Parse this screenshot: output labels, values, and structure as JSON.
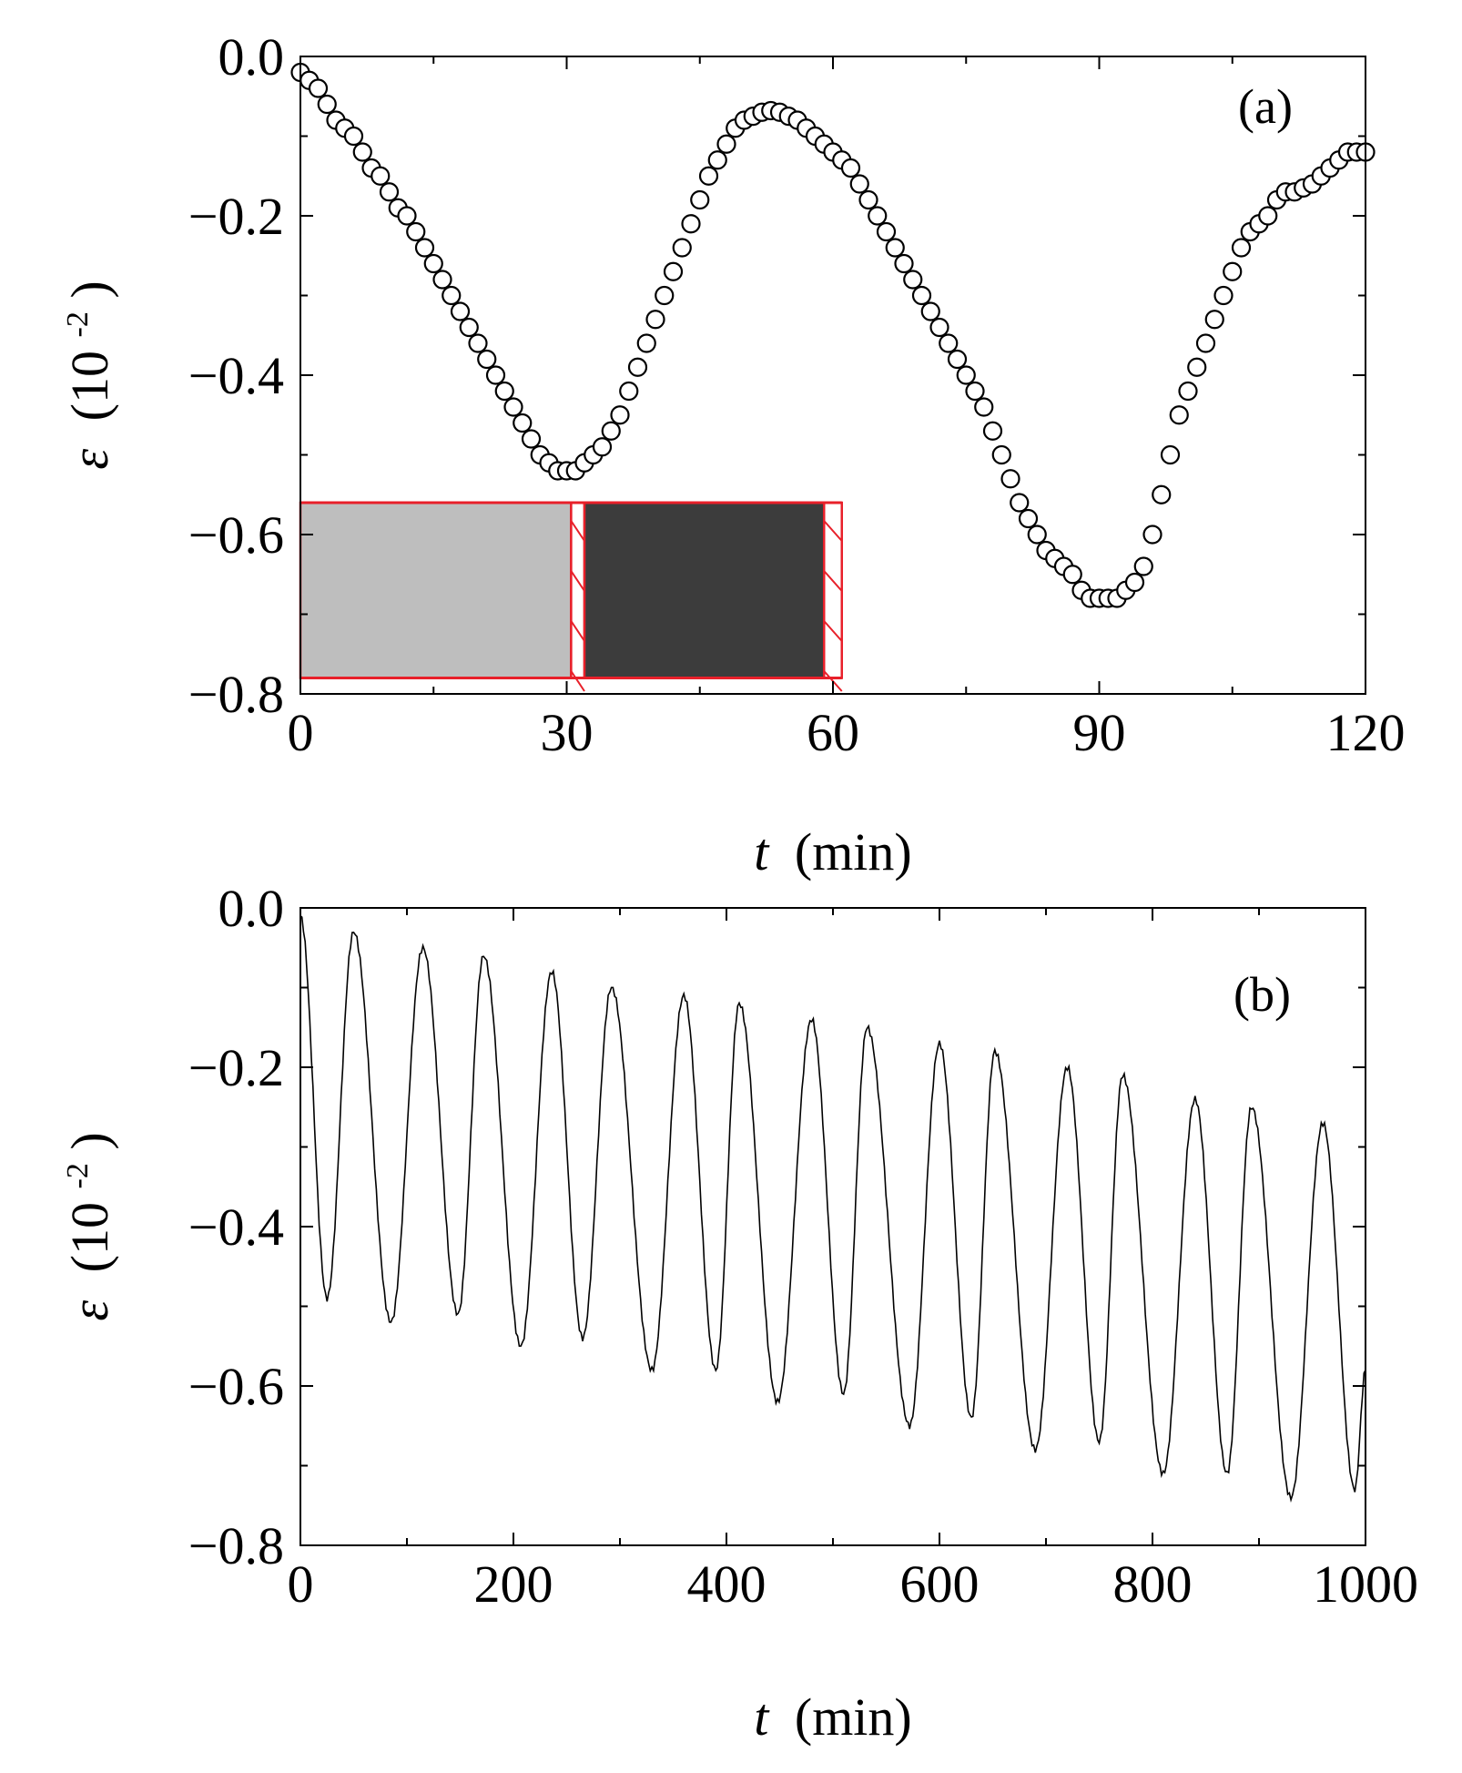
{
  "chart_data": [
    {
      "type": "scatter",
      "panel_label": "(a)",
      "xlabel_var": "t",
      "xlabel_unit": "(min)",
      "ylabel_var": "ε",
      "ylabel_unit": "(10",
      "ylabel_exp": "-2",
      "xlim": [
        0,
        120
      ],
      "ylim": [
        -0.8,
        0.0
      ],
      "xticks": [
        0,
        30,
        60,
        90,
        120
      ],
      "xtick_labels": [
        "0",
        "30",
        "60",
        "90",
        "120"
      ],
      "yticks": [
        0.0,
        -0.2,
        -0.4,
        -0.6,
        -0.8
      ],
      "ytick_labels": [
        "0.0",
        "−0.2",
        "−0.4",
        "−0.6",
        "−0.8"
      ],
      "marker": "open-circle",
      "series": [
        {
          "x": [
            0,
            1,
            2,
            3,
            4,
            5,
            6,
            7,
            8,
            9,
            10,
            11,
            12,
            13,
            14,
            15,
            16,
            17,
            18,
            19,
            20,
            21,
            22,
            23,
            24,
            25,
            26,
            27,
            28,
            29,
            30,
            31,
            32,
            33,
            34,
            35,
            36,
            37,
            38,
            39,
            40,
            41,
            42,
            43,
            44,
            45,
            46,
            47,
            48,
            49,
            50,
            51,
            52,
            53,
            54,
            55,
            56,
            57,
            58,
            59,
            60,
            61,
            62,
            63,
            64,
            65,
            66,
            67,
            68,
            69,
            70,
            71,
            72,
            73,
            74,
            75,
            76,
            77,
            78,
            79,
            80,
            81,
            82,
            83,
            84,
            85,
            86,
            87,
            88,
            89,
            90,
            91,
            92,
            93,
            94,
            95,
            96,
            97,
            98,
            99,
            100,
            101,
            102,
            103,
            104,
            105,
            106,
            107,
            108,
            109,
            110,
            111,
            112,
            113,
            114,
            115,
            116,
            117,
            118,
            119,
            120
          ],
          "y": [
            -0.02,
            -0.03,
            -0.04,
            -0.06,
            -0.08,
            -0.09,
            -0.1,
            -0.12,
            -0.14,
            -0.15,
            -0.17,
            -0.19,
            -0.2,
            -0.22,
            -0.24,
            -0.26,
            -0.28,
            -0.3,
            -0.32,
            -0.34,
            -0.36,
            -0.38,
            -0.4,
            -0.42,
            -0.44,
            -0.46,
            -0.48,
            -0.5,
            -0.51,
            -0.52,
            -0.52,
            -0.52,
            -0.51,
            -0.5,
            -0.49,
            -0.47,
            -0.45,
            -0.42,
            -0.39,
            -0.36,
            -0.33,
            -0.3,
            -0.27,
            -0.24,
            -0.21,
            -0.18,
            -0.15,
            -0.13,
            -0.11,
            -0.09,
            -0.08,
            -0.075,
            -0.07,
            -0.068,
            -0.07,
            -0.075,
            -0.08,
            -0.09,
            -0.1,
            -0.11,
            -0.12,
            -0.13,
            -0.14,
            -0.16,
            -0.18,
            -0.2,
            -0.22,
            -0.24,
            -0.26,
            -0.28,
            -0.3,
            -0.32,
            -0.34,
            -0.36,
            -0.38,
            -0.4,
            -0.42,
            -0.44,
            -0.47,
            -0.5,
            -0.53,
            -0.56,
            -0.58,
            -0.6,
            -0.62,
            -0.63,
            -0.64,
            -0.65,
            -0.67,
            -0.68,
            -0.68,
            -0.68,
            -0.68,
            -0.67,
            -0.66,
            -0.64,
            -0.6,
            -0.55,
            -0.5,
            -0.45,
            -0.42,
            -0.39,
            -0.36,
            -0.33,
            -0.3,
            -0.27,
            -0.24,
            -0.22,
            -0.21,
            -0.2,
            -0.18,
            -0.17,
            -0.17,
            -0.165,
            -0.16,
            -0.15,
            -0.14,
            -0.13,
            -0.12,
            -0.12,
            -0.12
          ]
        }
      ],
      "inset": {
        "blocks": [
          {
            "x0": 0,
            "x1": 30.5,
            "color": "#bebebe",
            "label": ""
          },
          {
            "x0": 30.5,
            "x1": 32,
            "color": "hatch",
            "label": ""
          },
          {
            "x0": 32,
            "x1": 59,
            "color": "#3c3c3c",
            "label": ""
          },
          {
            "x0": 59,
            "x1": 61,
            "color": "hatch",
            "label": ""
          }
        ],
        "y_top": -0.56,
        "y_bottom": -0.78,
        "outline_color": "#e8202a"
      }
    },
    {
      "type": "line",
      "panel_label": "(b)",
      "xlabel_var": "t",
      "xlabel_unit": "(min)",
      "ylabel_var": "ε",
      "ylabel_unit": "(10",
      "ylabel_exp": "-2",
      "xlim": [
        0,
        1000
      ],
      "ylim": [
        -0.8,
        0.0
      ],
      "xticks": [
        0,
        200,
        400,
        600,
        800,
        1000
      ],
      "xtick_labels": [
        "0",
        "200",
        "400",
        "600",
        "800",
        "1000"
      ],
      "yticks": [
        0.0,
        -0.2,
        -0.4,
        -0.6,
        -0.8
      ],
      "ytick_labels": [
        "0.0",
        "−0.2",
        "−0.4",
        "−0.6",
        "−0.8"
      ],
      "series": [
        {
          "x": [
            0,
            25,
            50,
            85,
            115,
            148,
            172,
            207,
            236,
            265,
            292,
            330,
            360,
            390,
            412,
            448,
            480,
            510,
            532,
            572,
            600,
            630,
            652,
            690,
            720,
            750,
            772,
            810,
            840,
            870,
            893,
            930,
            960,
            990,
            1000
          ],
          "y": [
            -0.01,
            -0.49,
            -0.03,
            -0.52,
            -0.05,
            -0.51,
            -0.06,
            -0.55,
            -0.08,
            -0.54,
            -0.1,
            -0.58,
            -0.11,
            -0.58,
            -0.12,
            -0.62,
            -0.14,
            -0.61,
            -0.15,
            -0.65,
            -0.17,
            -0.64,
            -0.18,
            -0.68,
            -0.2,
            -0.67,
            -0.21,
            -0.71,
            -0.24,
            -0.71,
            -0.25,
            -0.74,
            -0.27,
            -0.73,
            -0.58
          ]
        }
      ]
    }
  ]
}
